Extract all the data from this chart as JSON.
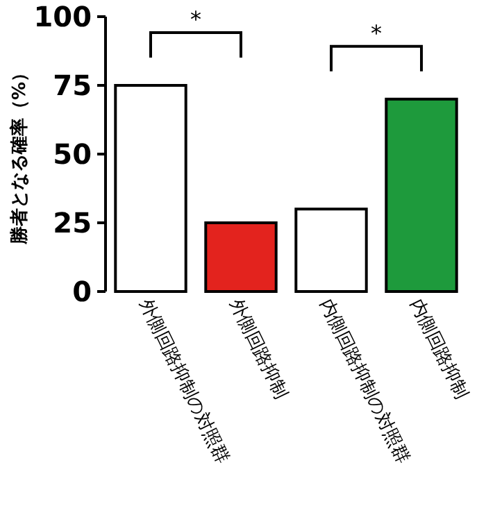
{
  "chart_data": {
    "type": "bar",
    "ylabel": "勝者となる確率（%）",
    "categories": [
      "外側回路抑制の対照群",
      "外側回路抑制",
      "内側回路抑制の対照群",
      "内側回路抑制"
    ],
    "values": [
      75,
      25,
      30,
      70
    ],
    "colors": [
      "#ffffff",
      "#e3231e",
      "#ffffff",
      "#1e9a3c"
    ],
    "ylim": [
      0,
      100
    ],
    "yticks": [
      0,
      25,
      50,
      75,
      100
    ],
    "annotations": [
      "*",
      "*"
    ]
  }
}
